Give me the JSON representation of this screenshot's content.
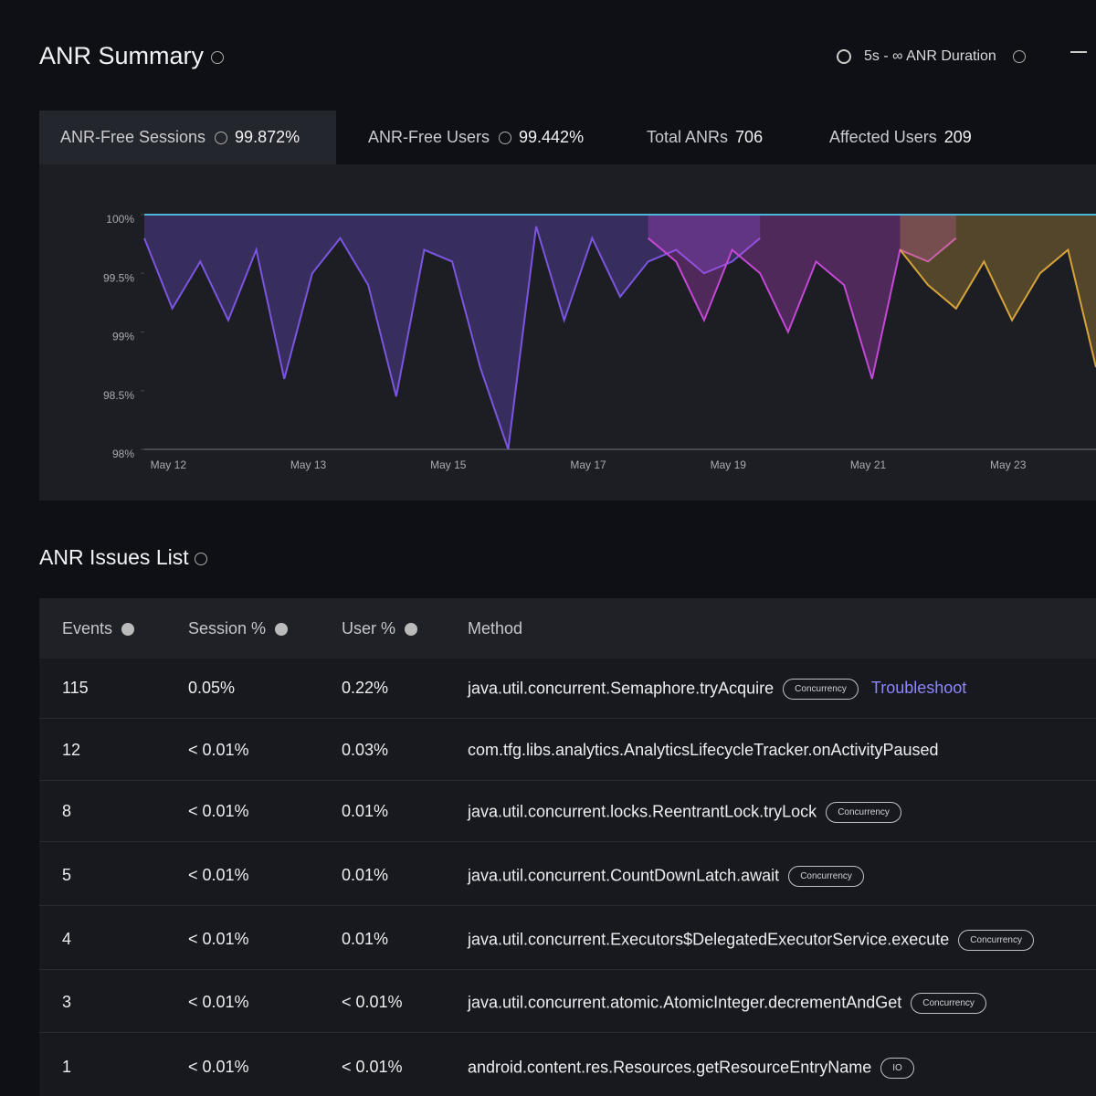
{
  "header": {
    "title": "ANR Summary",
    "filter": "5s - ∞ ANR Duration"
  },
  "tabs": [
    {
      "label": "ANR-Free Sessions",
      "value": "99.872%"
    },
    {
      "label": "ANR-Free Users",
      "value": "99.442%"
    },
    {
      "label": "Total ANRs",
      "value": "706"
    },
    {
      "label": "Affected Users",
      "value": "209"
    }
  ],
  "chart_data": {
    "type": "area",
    "categories": [
      null,
      "May 12",
      null,
      null,
      null,
      null,
      "May 13",
      null,
      null,
      null,
      null,
      "May 15",
      null,
      null,
      null,
      null,
      "May 17",
      null,
      null,
      null,
      null,
      "May 19",
      null,
      null,
      null,
      null,
      "May 21",
      null,
      null,
      null,
      null,
      "May 23",
      null,
      null,
      null
    ],
    "series": [
      {
        "color": "#7b55e0",
        "values": [
          99.8,
          99.2,
          99.6,
          99.1,
          99.7,
          98.6,
          99.5,
          99.8,
          99.4,
          98.45,
          99.7,
          99.6,
          98.7,
          98.0,
          99.9,
          99.1,
          99.8,
          99.3,
          99.6,
          99.7,
          99.5,
          99.6,
          99.8,
          null,
          null,
          null,
          null,
          null,
          null,
          null,
          null,
          null,
          null,
          null,
          null
        ]
      },
      {
        "color": "#c547d6",
        "values": [
          null,
          null,
          null,
          null,
          null,
          null,
          null,
          null,
          null,
          null,
          null,
          null,
          null,
          null,
          null,
          null,
          null,
          null,
          99.8,
          99.6,
          99.1,
          99.7,
          99.5,
          99.0,
          99.6,
          99.4,
          98.6,
          99.7,
          99.6,
          99.8,
          null,
          null,
          null,
          null,
          null
        ]
      },
      {
        "color": "#d7a43a",
        "values": [
          null,
          null,
          null,
          null,
          null,
          null,
          null,
          null,
          null,
          null,
          null,
          null,
          null,
          null,
          null,
          null,
          null,
          null,
          null,
          null,
          null,
          null,
          null,
          null,
          null,
          null,
          null,
          99.7,
          99.4,
          99.2,
          99.6,
          99.1,
          99.5,
          99.7,
          98.7
        ]
      }
    ],
    "ylim": [
      98,
      100
    ],
    "yticks": [
      {
        "value": 100,
        "label": "100%"
      },
      {
        "value": 99.5,
        "label": "99.5%"
      },
      {
        "value": 99,
        "label": "99%"
      },
      {
        "value": 98.5,
        "label": "98.5%"
      },
      {
        "value": 98,
        "label": "98%"
      }
    ]
  },
  "issues": {
    "title": "ANR Issues List",
    "columns": [
      "Events",
      "Session %",
      "User %",
      "Method"
    ],
    "rows": [
      {
        "events": "115",
        "session": "0.05%",
        "user": "0.22%",
        "method": "java.util.concurrent.Semaphore.tryAcquire",
        "tag": "Concurrency",
        "action": "Troubleshoot"
      },
      {
        "events": "12",
        "session": "< 0.01%",
        "user": "0.03%",
        "method": "com.tfg.libs.analytics.AnalyticsLifecycleTracker.onActivityPaused"
      },
      {
        "events": "8",
        "session": "< 0.01%",
        "user": "0.01%",
        "method": "java.util.concurrent.locks.ReentrantLock.tryLock",
        "tag": "Concurrency"
      },
      {
        "events": "5",
        "session": "< 0.01%",
        "user": "0.01%",
        "method": "java.util.concurrent.CountDownLatch.await",
        "tag": "Concurrency"
      },
      {
        "events": "4",
        "session": "< 0.01%",
        "user": "0.01%",
        "method": "java.util.concurrent.Executors$DelegatedExecutorService.execute",
        "tag": "Concurrency"
      },
      {
        "events": "3",
        "session": "< 0.01%",
        "user": "< 0.01%",
        "method": "java.util.concurrent.atomic.AtomicInteger.decrementAndGet",
        "tag": "Concurrency"
      },
      {
        "events": "1",
        "session": "< 0.01%",
        "user": "< 0.01%",
        "method": "android.content.res.Resources.getResourceEntryName",
        "tag": "IO"
      }
    ]
  }
}
